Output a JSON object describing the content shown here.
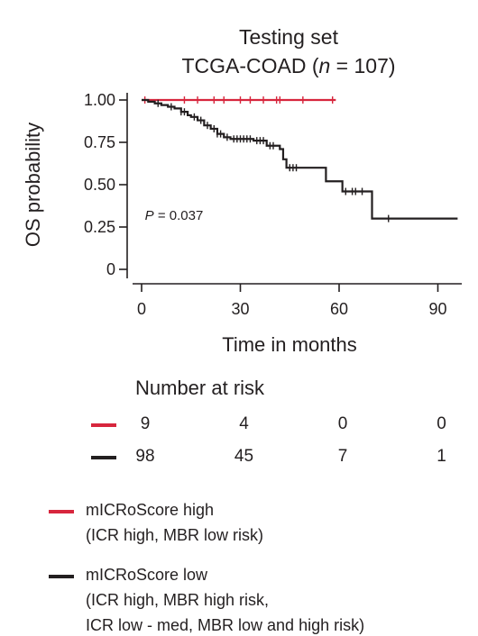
{
  "chart_data": {
    "type": "line",
    "title": "Testing set",
    "subtitle_prefix": "TCGA-COAD (",
    "subtitle_n_italic": "n",
    "subtitle_suffix": " = 107)",
    "xlabel": "Time in months",
    "ylabel": "OS probability",
    "xlim": [
      -5,
      96
    ],
    "ylim": [
      0,
      1.05
    ],
    "x_ticks": [
      0,
      30,
      60,
      90
    ],
    "x_tick_labels": [
      "0",
      "30",
      "60",
      "90"
    ],
    "y_ticks": [
      0,
      0.25,
      0.5,
      0.75,
      1.0
    ],
    "y_tick_labels": [
      "0",
      "0.25",
      "0.50",
      "0.75",
      "1.00"
    ],
    "annotation_prefix": "P",
    "annotation_value": " = 0.037",
    "annotation_at": [
      1,
      0.32
    ],
    "series": [
      {
        "color": "#d7263d",
        "steps": [
          [
            0,
            1.0
          ],
          [
            59,
            1.0
          ]
        ],
        "censor_x": [
          1,
          13,
          17,
          22,
          25,
          30,
          33,
          37,
          41,
          42,
          49,
          58
        ]
      },
      {
        "color": "#231f20",
        "steps": [
          [
            0,
            1.0
          ],
          [
            2,
            0.99
          ],
          [
            4,
            0.98
          ],
          [
            6,
            0.97
          ],
          [
            8,
            0.96
          ],
          [
            10,
            0.95
          ],
          [
            12,
            0.93
          ],
          [
            14,
            0.91
          ],
          [
            15,
            0.9
          ],
          [
            17,
            0.88
          ],
          [
            19,
            0.85
          ],
          [
            21,
            0.83
          ],
          [
            23,
            0.8
          ],
          [
            25,
            0.78
          ],
          [
            27,
            0.77
          ],
          [
            34,
            0.76
          ],
          [
            38,
            0.73
          ],
          [
            42,
            0.71
          ],
          [
            43,
            0.65
          ],
          [
            44,
            0.6
          ],
          [
            56,
            0.52
          ],
          [
            61,
            0.46
          ],
          [
            70,
            0.3
          ],
          [
            96,
            0.3
          ]
        ],
        "censor_x": [
          5,
          9,
          12,
          13,
          16,
          18,
          20,
          22,
          23,
          24,
          26,
          28,
          29,
          30,
          31,
          32,
          33,
          35,
          36,
          37,
          39,
          40,
          45,
          46,
          47,
          62,
          64,
          65,
          67,
          75
        ]
      }
    ],
    "risk_table": {
      "title": "Number at risk",
      "times": [
        0,
        30,
        60,
        90
      ],
      "rows": [
        {
          "color": "#d7263d",
          "values": [
            "9",
            "4",
            "0",
            "0"
          ]
        },
        {
          "color": "#231f20",
          "values": [
            "98",
            "45",
            "7",
            "1"
          ]
        }
      ]
    },
    "legend": [
      {
        "color": "#d7263d",
        "lines": [
          "mICRoScore high",
          "(ICR high, MBR low risk)"
        ]
      },
      {
        "color": "#231f20",
        "lines": [
          "mICRoScore low",
          "(ICR high, MBR high risk,",
          "ICR low - med,  MBR low and high risk)"
        ]
      }
    ]
  }
}
